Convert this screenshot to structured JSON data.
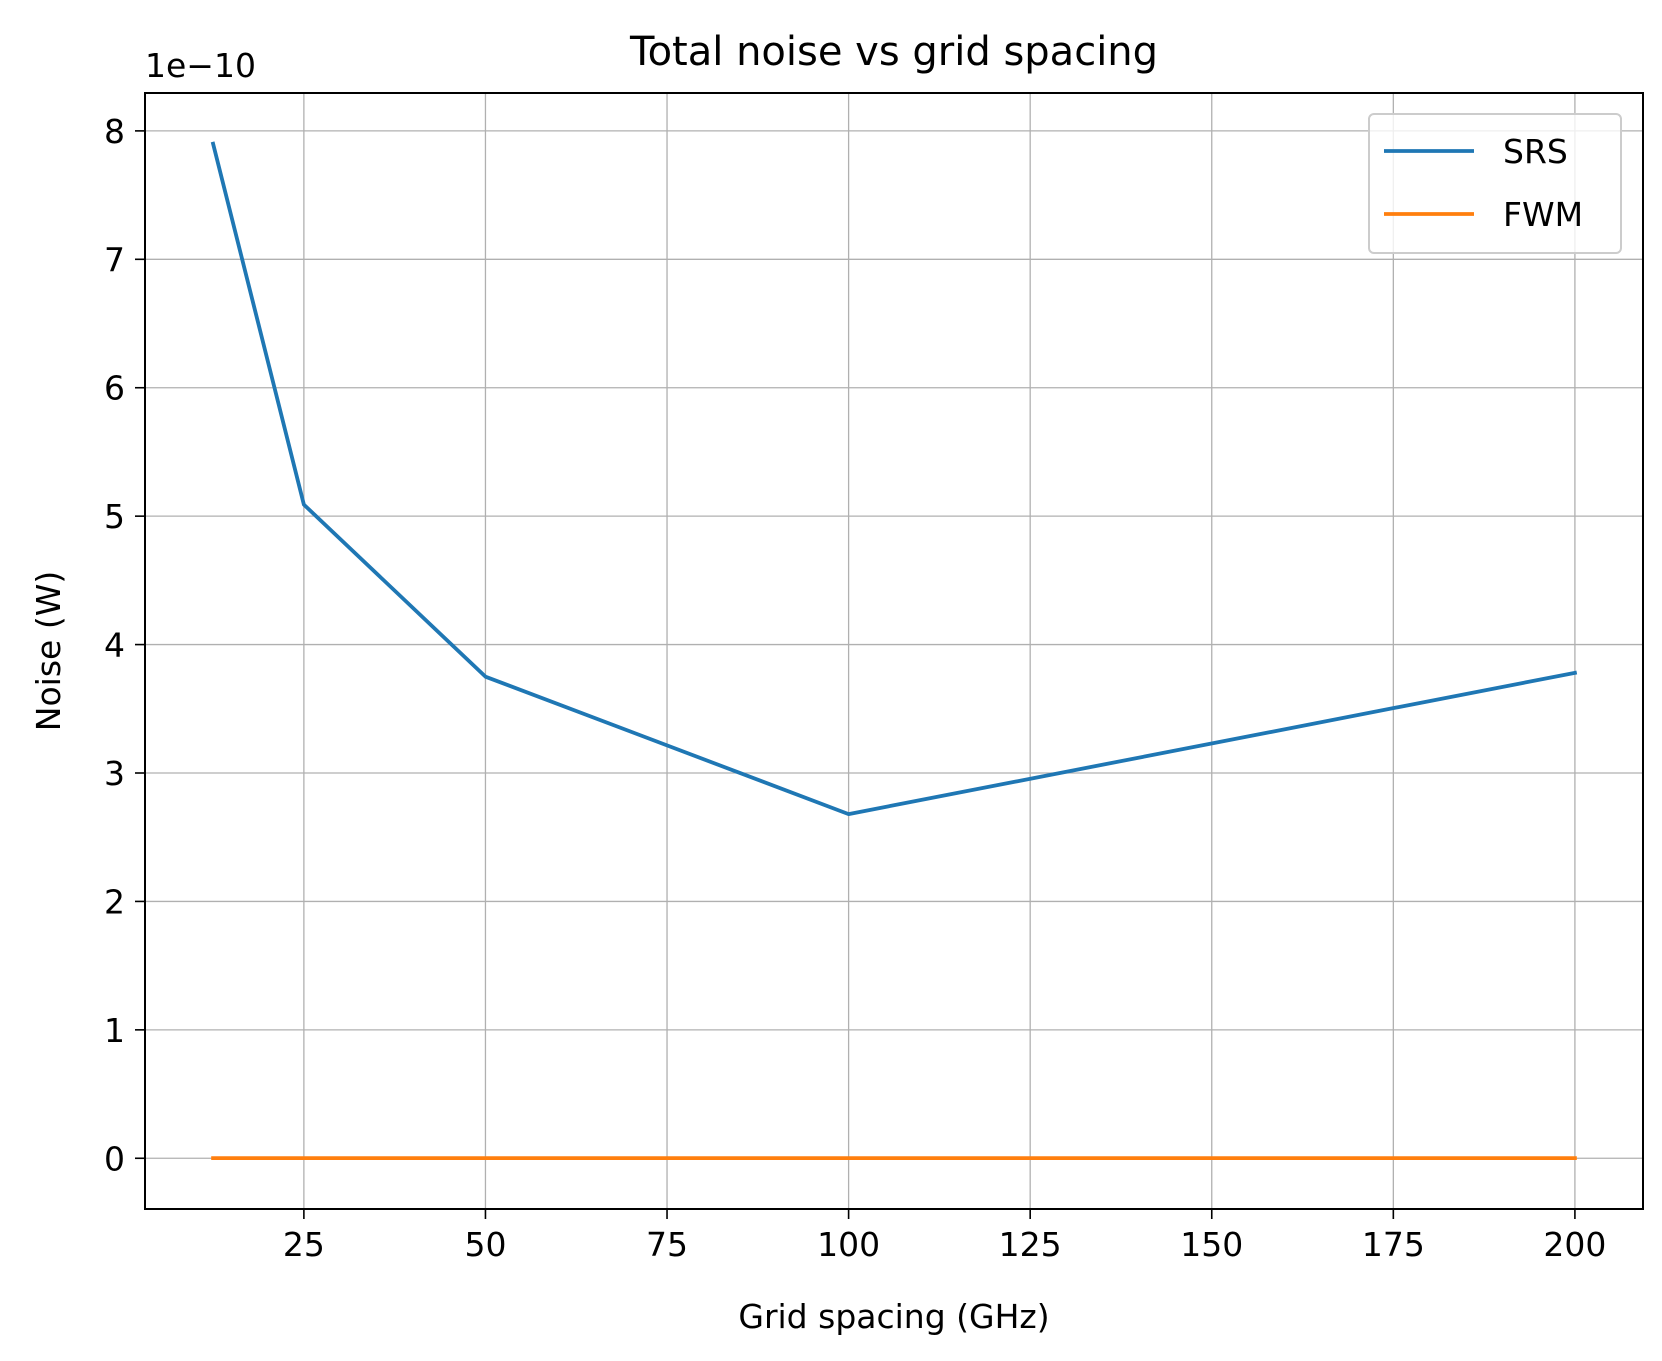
{
  "chart_data": {
    "type": "line",
    "title": "Total noise vs grid spacing",
    "xlabel": "Grid spacing (GHz)",
    "ylabel": "Noise (W)",
    "y_offset_label": "1e−10",
    "xlim": [
      3.125,
      209.375
    ],
    "ylim": [
      -0.395,
      8.295
    ],
    "x_scale": "linear",
    "y_scale": "linear",
    "grid": true,
    "legend_position": "top-right",
    "x_ticks": [
      25,
      50,
      75,
      100,
      125,
      150,
      175,
      200
    ],
    "x_tick_labels": [
      "25",
      "50",
      "75",
      "100",
      "125",
      "150",
      "175",
      "200"
    ],
    "y_ticks": [
      0,
      1,
      2,
      3,
      4,
      5,
      6,
      7,
      8
    ],
    "y_tick_labels": [
      "0",
      "1",
      "2",
      "3",
      "4",
      "5",
      "6",
      "7",
      "8"
    ],
    "series": [
      {
        "name": "SRS",
        "color": "#1f77b4",
        "x": [
          12.5,
          25,
          50,
          100,
          200
        ],
        "y": [
          7.9,
          5.09,
          3.75,
          2.68,
          3.78
        ]
      },
      {
        "name": "FWM",
        "color": "#ff7f0e",
        "x": [
          12.5,
          25,
          50,
          100,
          200
        ],
        "y": [
          0.001,
          0.001,
          0.001,
          0.001,
          0.001
        ]
      }
    ]
  }
}
